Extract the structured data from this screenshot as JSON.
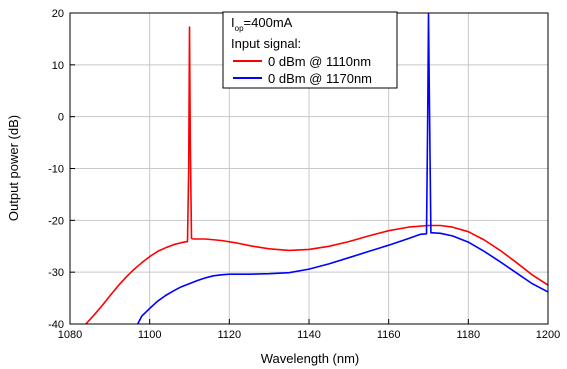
{
  "chart_data": {
    "type": "line",
    "xlabel": "Wavelength (nm)",
    "ylabel": "Output power (dB)",
    "xlim": [
      1080,
      1200
    ],
    "ylim": [
      -40,
      20
    ],
    "xticks": [
      1080,
      1100,
      1120,
      1140,
      1160,
      1180,
      1200
    ],
    "yticks": [
      -40,
      -30,
      -20,
      -10,
      0,
      10,
      20
    ],
    "grid": true,
    "legend": {
      "placement": "top-center",
      "line1_main": "I",
      "line1_sub": "op",
      "line1_rest": "=400mA",
      "line2": "Input signal:"
    },
    "series": [
      {
        "name": "0 dBm @ 1110nm",
        "color": "#ff0000",
        "x": [
          1084,
          1086,
          1088,
          1090,
          1092,
          1094,
          1096,
          1098,
          1100,
          1102,
          1104,
          1106,
          1108,
          1109.5,
          1109.8,
          1110,
          1110.2,
          1110.5,
          1111,
          1114,
          1118,
          1122,
          1126,
          1130,
          1135,
          1140,
          1145,
          1150,
          1155,
          1160,
          1165,
          1170,
          1173,
          1176,
          1180,
          1184,
          1188,
          1192,
          1196,
          1200
        ],
        "y": [
          -40,
          -38.3,
          -36.5,
          -34.6,
          -32.7,
          -31,
          -29.5,
          -28.2,
          -27,
          -26,
          -25.3,
          -24.7,
          -24.3,
          -24.1,
          -10,
          17.3,
          -5,
          -23.5,
          -23.6,
          -23.6,
          -23.9,
          -24.4,
          -25,
          -25.5,
          -25.8,
          -25.6,
          -25,
          -24.1,
          -23,
          -22,
          -21.3,
          -21,
          -21,
          -21.3,
          -22.2,
          -23.8,
          -25.8,
          -28.1,
          -30.5,
          -32.5
        ]
      },
      {
        "name": "0 dBm @ 1170nm",
        "color": "#0000ff",
        "x": [
          1097,
          1098,
          1100,
          1102,
          1104,
          1106,
          1108,
          1110,
          1112,
          1114,
          1116,
          1118,
          1120,
          1125,
          1130,
          1135,
          1140,
          1145,
          1150,
          1155,
          1160,
          1165,
          1168,
          1169.5,
          1169.8,
          1170,
          1170.2,
          1170.6,
          1171,
          1173,
          1176,
          1180,
          1184,
          1188,
          1192,
          1196,
          1200
        ],
        "y": [
          -40,
          -38.5,
          -37,
          -35.6,
          -34.5,
          -33.6,
          -32.8,
          -32.2,
          -31.6,
          -31.1,
          -30.7,
          -30.5,
          -30.4,
          -30.4,
          -30.3,
          -30.1,
          -29.4,
          -28.4,
          -27.2,
          -26,
          -24.8,
          -23.5,
          -22.7,
          -22.6,
          0,
          19.8,
          5,
          -22.4,
          -22.4,
          -22.5,
          -23,
          -24.2,
          -26,
          -28,
          -30.1,
          -32.2,
          -33.8
        ]
      }
    ]
  }
}
